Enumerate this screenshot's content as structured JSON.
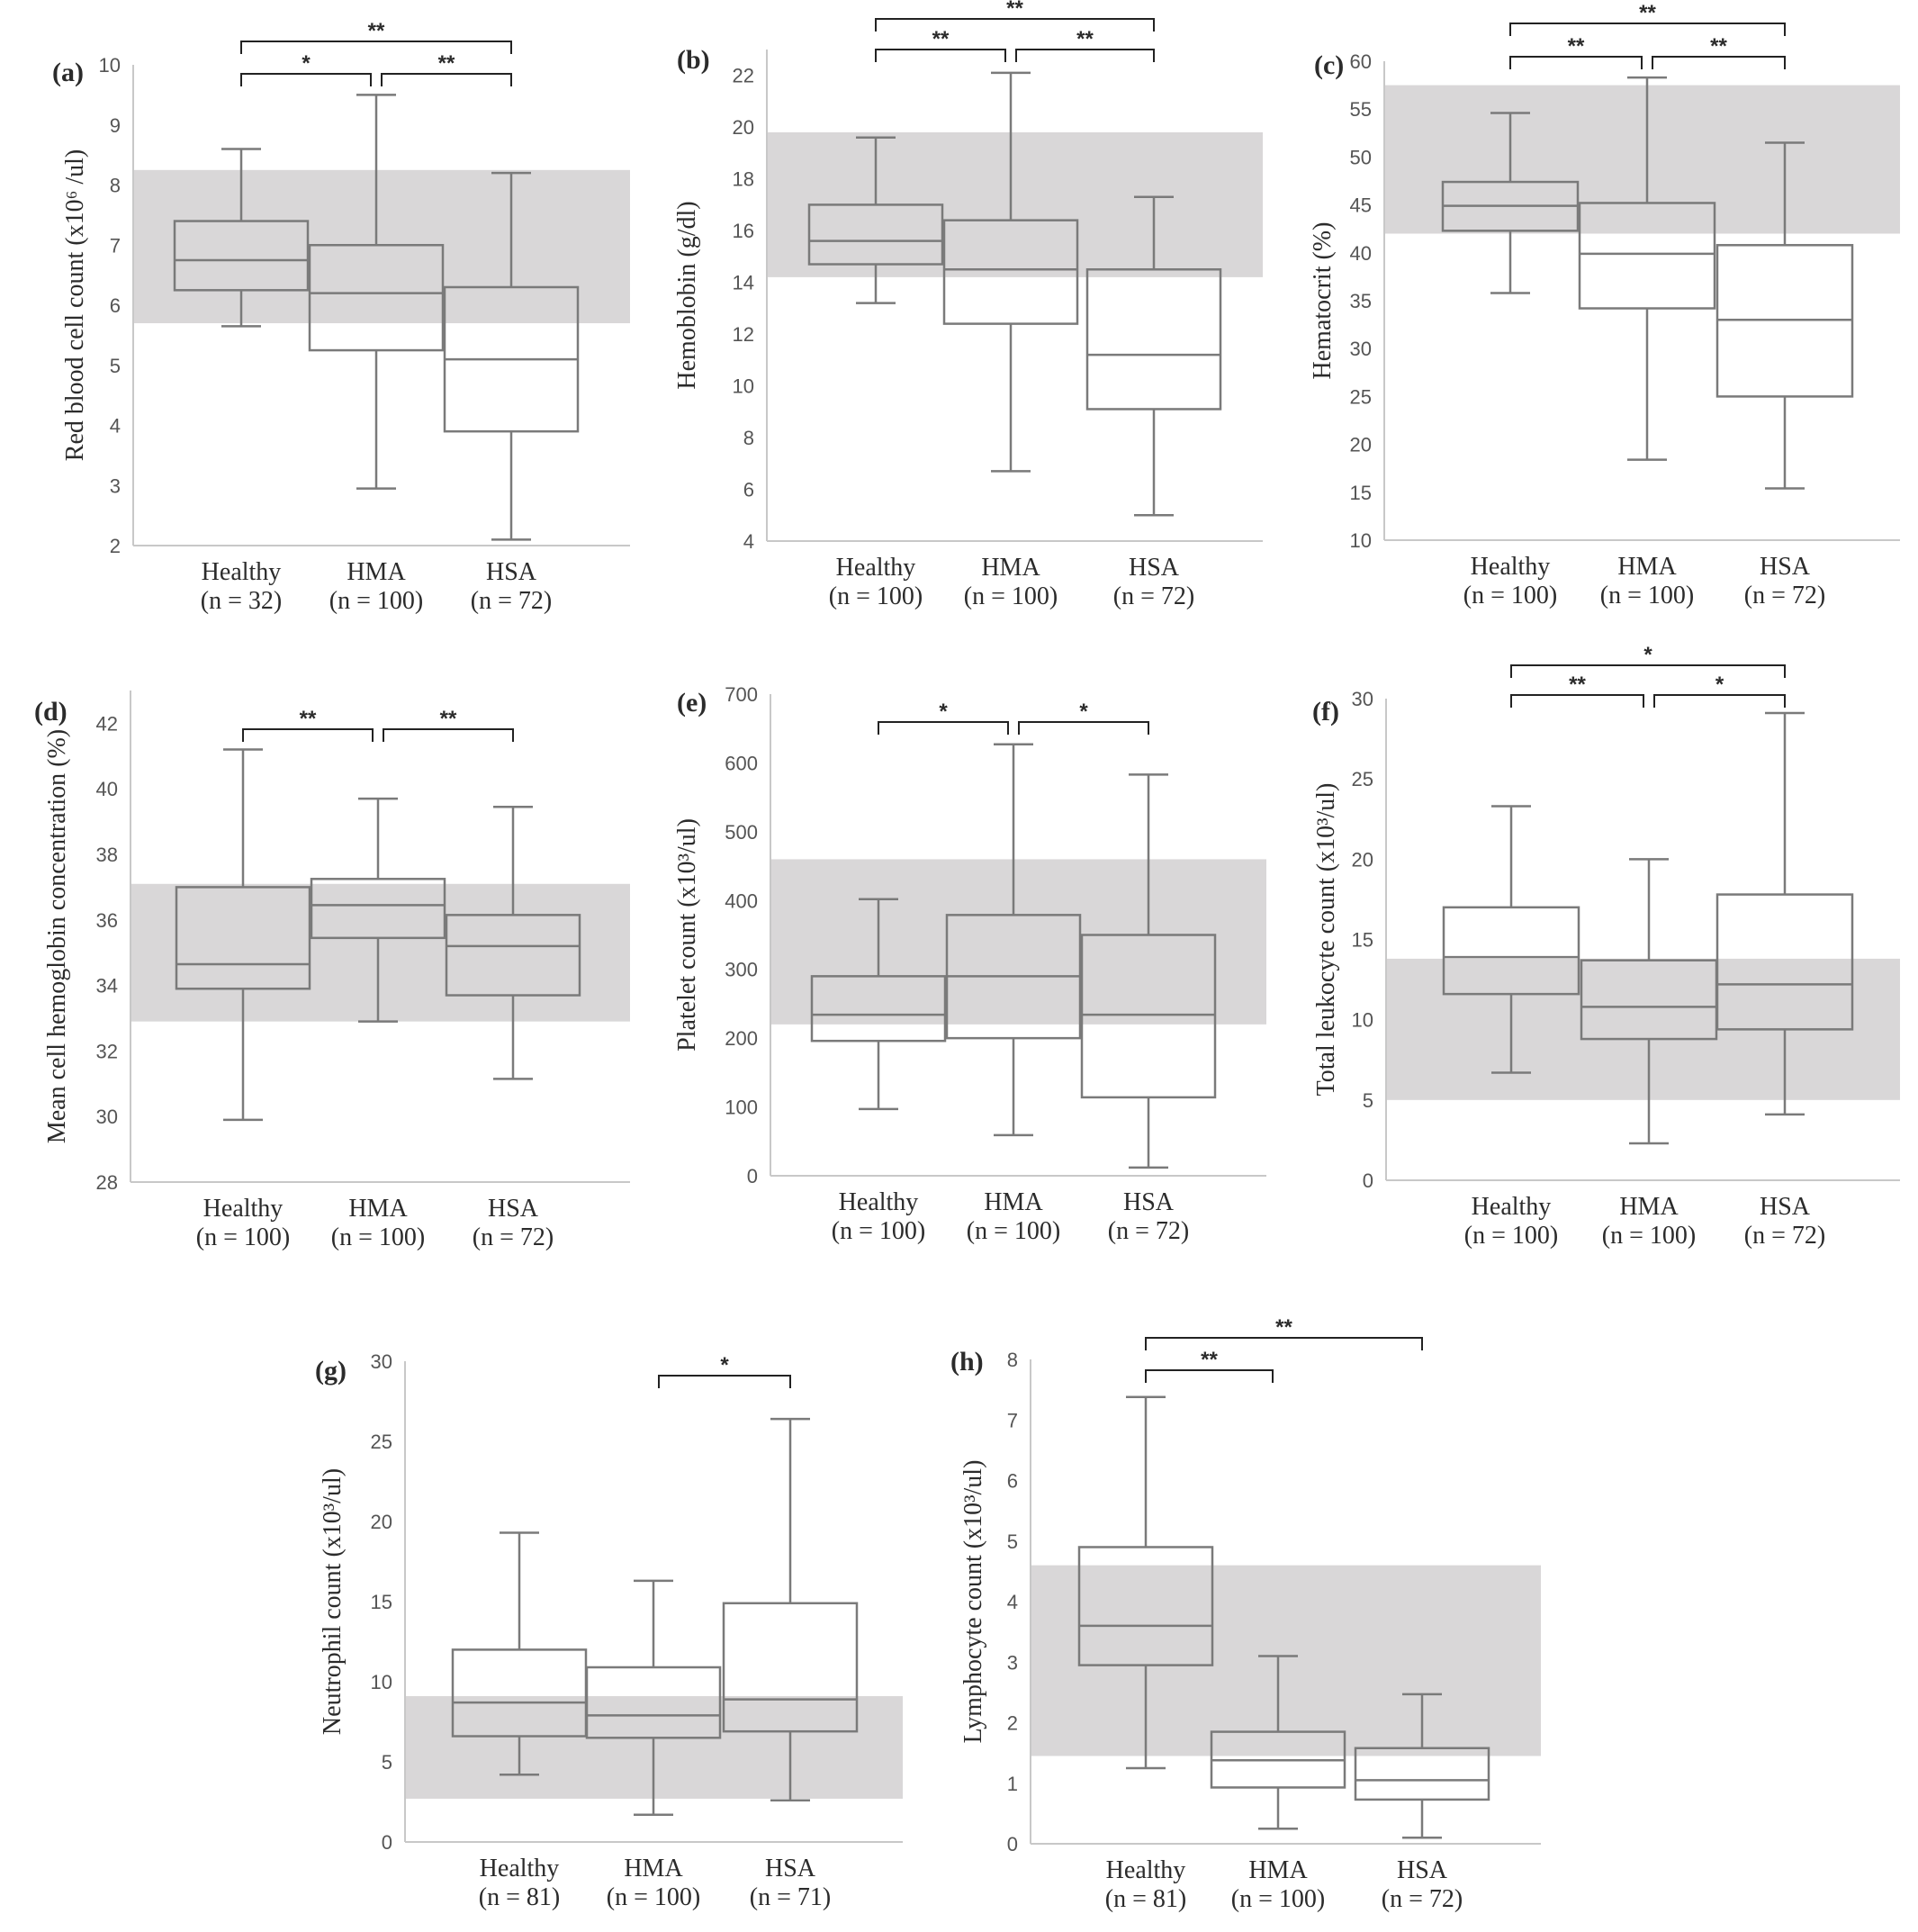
{
  "figure": {
    "colors": {
      "box": "#7a7a7a",
      "reference_band": "#d9d7d8",
      "bracket": "#222222",
      "axis": "#c8c8c8"
    }
  },
  "chart_data": [
    {
      "id": "a",
      "type": "box",
      "label": "(a)",
      "ylabel": "Red blood cell count (x10⁶ /ul)",
      "ylim": [
        2,
        10
      ],
      "yticks": [
        2,
        3,
        4,
        5,
        6,
        7,
        8,
        9,
        10
      ],
      "reference_range": [
        5.7,
        8.25
      ],
      "categories": [
        "Healthy",
        "HMA",
        "HSA"
      ],
      "n_labels": [
        "(n =  32)",
        "(n = 100)",
        "(n = 72)"
      ],
      "boxes": [
        {
          "min": 5.65,
          "q1": 6.25,
          "median": 6.75,
          "q3": 7.4,
          "max": 8.6
        },
        {
          "min": 2.95,
          "q1": 5.25,
          "median": 6.2,
          "q3": 7.0,
          "max": 9.5
        },
        {
          "min": 2.1,
          "q1": 3.9,
          "median": 5.1,
          "q3": 6.3,
          "max": 8.2
        }
      ],
      "significance": [
        {
          "from": 0,
          "to": 1,
          "label": "*",
          "level": 0
        },
        {
          "from": 1,
          "to": 2,
          "label": "**",
          "level": 0
        },
        {
          "from": 0,
          "to": 2,
          "label": "**",
          "level": 1
        }
      ]
    },
    {
      "id": "b",
      "type": "box",
      "label": "(b)",
      "ylabel": "Hemoblobin (g/dl)",
      "ylim": [
        4,
        23
      ],
      "yticks": [
        4,
        6,
        8,
        10,
        12,
        14,
        16,
        18,
        20,
        22
      ],
      "reference_range": [
        14.2,
        19.8
      ],
      "categories": [
        "Healthy",
        "HMA",
        "HSA"
      ],
      "n_labels": [
        "(n = 100)",
        "(n = 100)",
        "(n = 72)"
      ],
      "boxes": [
        {
          "min": 13.2,
          "q1": 14.7,
          "median": 15.6,
          "q3": 17.0,
          "max": 19.6
        },
        {
          "min": 6.7,
          "q1": 12.4,
          "median": 14.5,
          "q3": 16.4,
          "max": 22.1
        },
        {
          "min": 5.0,
          "q1": 9.1,
          "median": 11.2,
          "q3": 14.5,
          "max": 17.3
        }
      ],
      "significance": [
        {
          "from": 0,
          "to": 1,
          "label": "**",
          "level": 0
        },
        {
          "from": 1,
          "to": 2,
          "label": "**",
          "level": 0
        },
        {
          "from": 0,
          "to": 2,
          "label": "**",
          "level": 1
        }
      ]
    },
    {
      "id": "c",
      "type": "box",
      "label": "(c)",
      "ylabel": "Hematocrit (%)",
      "ylim": [
        10,
        60
      ],
      "yticks": [
        10,
        15,
        20,
        25,
        30,
        35,
        40,
        45,
        50,
        55,
        60
      ],
      "reference_range": [
        42,
        57.5
      ],
      "categories": [
        "Healthy",
        "HMA",
        "HSA"
      ],
      "n_labels": [
        "(n = 100)",
        "(n = 100)",
        "(n = 72)"
      ],
      "boxes": [
        {
          "min": 35.8,
          "q1": 42.3,
          "median": 44.9,
          "q3": 47.4,
          "max": 54.6
        },
        {
          "min": 18.4,
          "q1": 34.2,
          "median": 39.9,
          "q3": 45.2,
          "max": 58.3
        },
        {
          "min": 15.4,
          "q1": 25.0,
          "median": 33.0,
          "q3": 40.8,
          "max": 51.5
        }
      ],
      "significance": [
        {
          "from": 0,
          "to": 1,
          "label": "**",
          "level": 0
        },
        {
          "from": 1,
          "to": 2,
          "label": "**",
          "level": 0
        },
        {
          "from": 0,
          "to": 2,
          "label": "**",
          "level": 1
        }
      ]
    },
    {
      "id": "d",
      "type": "box",
      "label": "(d)",
      "ylabel": "Mean cell hemoglobin concentration (%)",
      "ylim": [
        28,
        43
      ],
      "yticks": [
        28,
        30,
        32,
        34,
        36,
        38,
        40,
        42
      ],
      "reference_range": [
        32.9,
        37.1
      ],
      "categories": [
        "Healthy",
        "HMA",
        "HSA"
      ],
      "n_labels": [
        "(n = 100)",
        "(n = 100)",
        "(n = 72)"
      ],
      "boxes": [
        {
          "min": 29.9,
          "q1": 33.9,
          "median": 34.65,
          "q3": 37.0,
          "max": 41.2
        },
        {
          "min": 32.9,
          "q1": 35.45,
          "median": 36.45,
          "q3": 37.25,
          "max": 39.7
        },
        {
          "min": 31.15,
          "q1": 33.7,
          "median": 35.2,
          "q3": 36.15,
          "max": 39.45
        }
      ],
      "significance": [
        {
          "from": 0,
          "to": 1,
          "label": "**",
          "level": 0
        },
        {
          "from": 1,
          "to": 2,
          "label": "**",
          "level": 0
        }
      ]
    },
    {
      "id": "e",
      "type": "box",
      "label": "(e)",
      "ylabel": "Platelet count  (x10³/ul)",
      "ylim": [
        0,
        700
      ],
      "yticks": [
        0,
        100,
        200,
        300,
        400,
        500,
        600,
        700
      ],
      "reference_range": [
        220,
        460
      ],
      "categories": [
        "Healthy",
        "HMA",
        "HSA"
      ],
      "n_labels": [
        "(n = 100)",
        "(n = 100)",
        "(n = 72)"
      ],
      "boxes": [
        {
          "min": 97,
          "q1": 196,
          "median": 234,
          "q3": 290,
          "max": 402
        },
        {
          "min": 59,
          "q1": 200,
          "median": 290,
          "q3": 379,
          "max": 627
        },
        {
          "min": 12,
          "q1": 114,
          "median": 234,
          "q3": 350,
          "max": 583
        }
      ],
      "significance": [
        {
          "from": 0,
          "to": 1,
          "label": "*",
          "level": 0
        },
        {
          "from": 1,
          "to": 2,
          "label": "*",
          "level": 0
        }
      ]
    },
    {
      "id": "f",
      "type": "box",
      "label": "(f)",
      "ylabel": "Total leukocyte count  (x10³/ul)",
      "ylim": [
        0,
        30
      ],
      "yticks": [
        0,
        5,
        10,
        15,
        20,
        25,
        30
      ],
      "reference_range": [
        5,
        13.8
      ],
      "categories": [
        "Healthy",
        "HMA",
        "HSA"
      ],
      "n_labels": [
        "(n = 100)",
        "(n = 100)",
        "(n = 72)"
      ],
      "boxes": [
        {
          "min": 6.7,
          "q1": 11.6,
          "median": 13.9,
          "q3": 17.0,
          "max": 23.3
        },
        {
          "min": 2.3,
          "q1": 8.8,
          "median": 10.8,
          "q3": 13.7,
          "max": 20.0
        },
        {
          "min": 4.1,
          "q1": 9.4,
          "median": 12.2,
          "q3": 17.8,
          "max": 29.1
        }
      ],
      "significance": [
        {
          "from": 0,
          "to": 1,
          "label": "**",
          "level": 0
        },
        {
          "from": 1,
          "to": 2,
          "label": "*",
          "level": 0
        },
        {
          "from": 0,
          "to": 2,
          "label": "*",
          "level": 1
        }
      ]
    },
    {
      "id": "g",
      "type": "box",
      "label": "(g)",
      "ylabel": "Neutrophil count  (x10³/ul)",
      "ylim": [
        0,
        30
      ],
      "yticks": [
        0,
        5,
        10,
        15,
        20,
        25,
        30
      ],
      "reference_range": [
        2.7,
        9.1
      ],
      "categories": [
        "Healthy",
        "HMA",
        "HSA"
      ],
      "n_labels": [
        "(n = 81)",
        "(n = 100)",
        "(n = 71)"
      ],
      "boxes": [
        {
          "min": 4.2,
          "q1": 6.6,
          "median": 8.7,
          "q3": 12.0,
          "max": 19.3
        },
        {
          "min": 1.7,
          "q1": 6.5,
          "median": 7.9,
          "q3": 10.9,
          "max": 16.3
        },
        {
          "min": 2.6,
          "q1": 6.9,
          "median": 8.9,
          "q3": 14.9,
          "max": 26.4
        }
      ],
      "significance": [
        {
          "from": 1,
          "to": 2,
          "label": "*",
          "level": 0
        }
      ]
    },
    {
      "id": "h",
      "type": "box",
      "label": "(h)",
      "ylabel": "Lymphocyte count  (x10³/ul)",
      "ylim": [
        0,
        8
      ],
      "yticks": [
        0,
        1,
        2,
        3,
        4,
        5,
        6,
        7,
        8
      ],
      "reference_range": [
        1.45,
        4.6
      ],
      "categories": [
        "Healthy",
        "HMA",
        "HSA"
      ],
      "n_labels": [
        "(n = 81)",
        "(n = 100)",
        "(n = 72)"
      ],
      "boxes": [
        {
          "min": 1.25,
          "q1": 2.95,
          "median": 3.6,
          "q3": 4.9,
          "max": 7.38
        },
        {
          "min": 0.25,
          "q1": 0.93,
          "median": 1.38,
          "q3": 1.85,
          "max": 3.1
        },
        {
          "min": 0.1,
          "q1": 0.73,
          "median": 1.05,
          "q3": 1.58,
          "max": 2.47
        }
      ],
      "significance": [
        {
          "from": 0,
          "to": 1,
          "label": "**",
          "level": 0
        },
        {
          "from": 0,
          "to": 2,
          "label": "**",
          "level": 1
        }
      ]
    }
  ]
}
